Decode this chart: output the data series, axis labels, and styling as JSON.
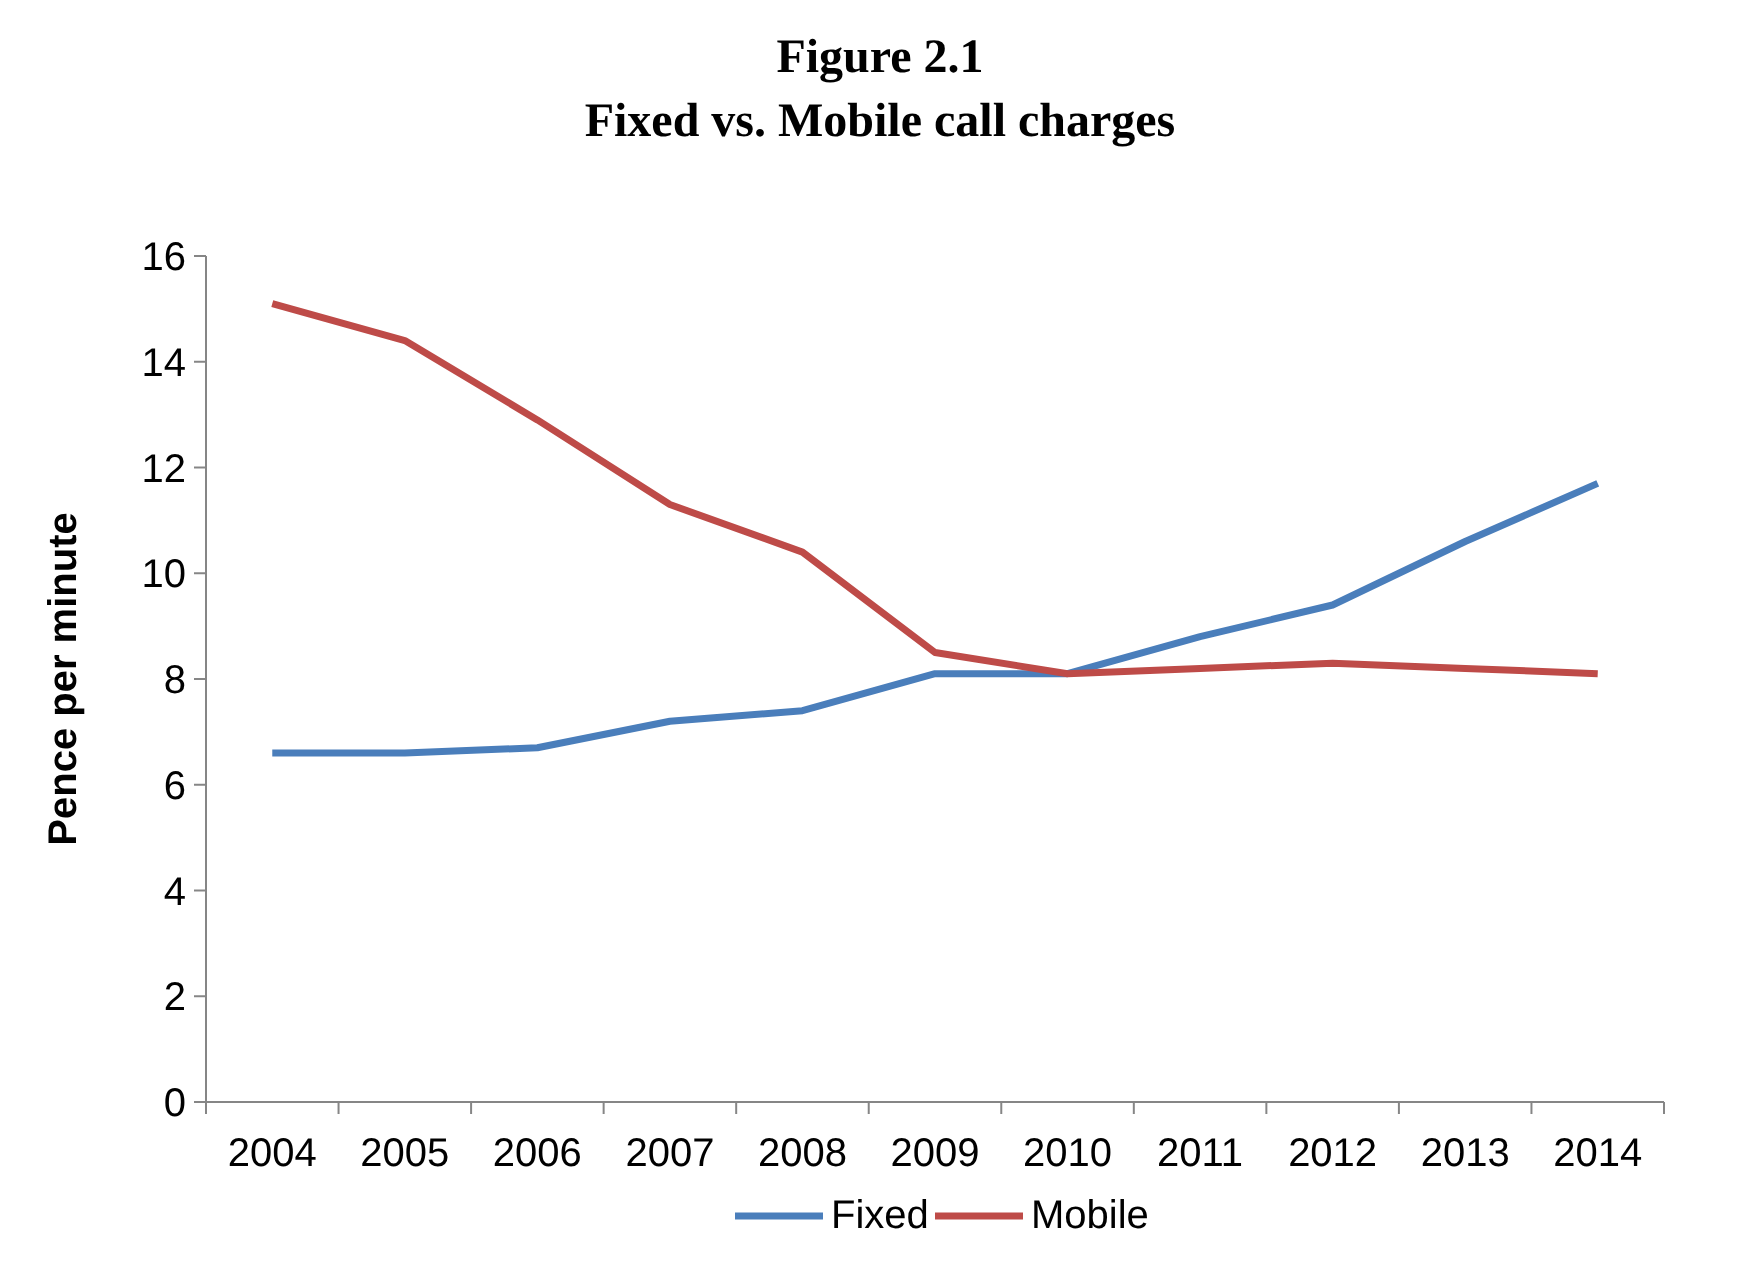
{
  "chart_data": {
    "type": "line",
    "title": "Figure 2.1",
    "subtitle": "Fixed vs. Mobile call charges",
    "ylabel": "Pence per minute",
    "categories": [
      "2004",
      "2005",
      "2006",
      "2007",
      "2008",
      "2009",
      "2010",
      "2011",
      "2012",
      "2013",
      "2014"
    ],
    "series": [
      {
        "name": "Fixed",
        "color": "#4a7ebb",
        "values": [
          6.6,
          6.6,
          6.7,
          7.2,
          7.4,
          8.1,
          8.1,
          8.8,
          9.4,
          10.6,
          11.7
        ]
      },
      {
        "name": "Mobile",
        "color": "#be4b48",
        "values": [
          15.1,
          14.4,
          12.9,
          11.3,
          10.4,
          8.5,
          8.1,
          8.2,
          8.3,
          8.2,
          8.1
        ]
      }
    ],
    "ylim": [
      0,
      16
    ],
    "yticks": [
      0,
      2,
      4,
      6,
      8,
      10,
      12,
      14,
      16
    ],
    "grid": false,
    "legend": "bottom",
    "marker": "none",
    "line_style": "solid"
  }
}
